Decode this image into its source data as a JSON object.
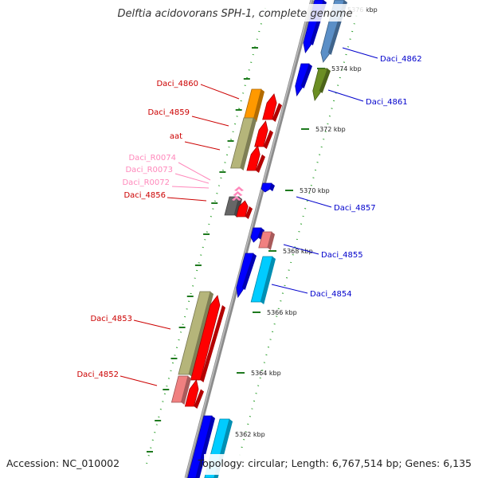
{
  "title": "Delftia acidovorans SPH-1, complete genome",
  "footer": {
    "accession": "Accession: NC_010002",
    "topology": "Topology: circular; Length: 6,767,514 bp; Genes: 6,135"
  },
  "colors": {
    "backbone": "#8c8c8c",
    "tick_major": "#1f7a1f",
    "tick_minor": "#2ea02e",
    "label_forward": "#cc0000",
    "label_reverse": "#0000cc",
    "label_rna": "#ff88bb"
  },
  "ticks": [
    {
      "label": "5362 kbp"
    },
    {
      "label": "5364 kbp"
    },
    {
      "label": "5366 kbp"
    },
    {
      "label": "5368 kbp"
    },
    {
      "label": "5370 kbp"
    },
    {
      "label": "5372 kbp"
    },
    {
      "label": "5374 kbp"
    },
    {
      "label": "5376 kbp"
    }
  ],
  "forward_labels": [
    {
      "text": "Daci_4860",
      "kind": "cds"
    },
    {
      "text": "Daci_4859",
      "kind": "cds"
    },
    {
      "text": "aat",
      "kind": "cds"
    },
    {
      "text": "Daci_R0074",
      "kind": "rna"
    },
    {
      "text": "Daci_R0073",
      "kind": "rna"
    },
    {
      "text": "Daci_R0072",
      "kind": "rna"
    },
    {
      "text": "Daci_4856",
      "kind": "cds"
    },
    {
      "text": "Daci_4853",
      "kind": "cds"
    },
    {
      "text": "Daci_4852",
      "kind": "cds"
    }
  ],
  "reverse_labels": [
    {
      "text": "Daci_4862"
    },
    {
      "text": "Daci_4861"
    },
    {
      "text": "Daci_4857"
    },
    {
      "text": "Daci_4855"
    },
    {
      "text": "Daci_4854"
    }
  ]
}
